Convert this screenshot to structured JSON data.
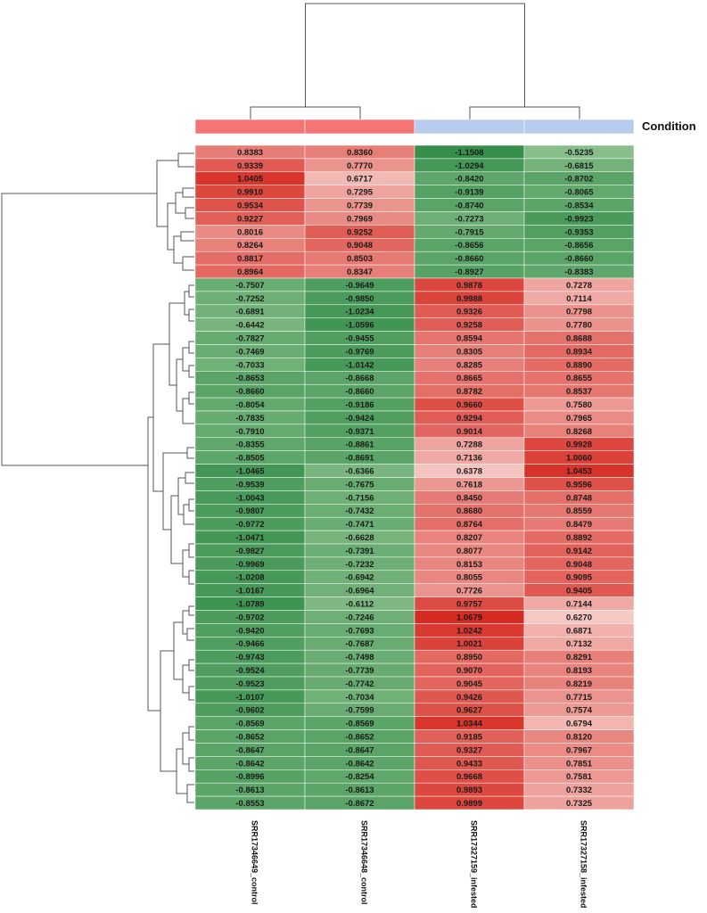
{
  "chart_data": {
    "type": "heatmap",
    "legend_title": "Condition",
    "condition_colors": {
      "control": "#f47575",
      "infested": "#b8ccee"
    },
    "color_scale": {
      "low": "#2e8b46",
      "mid": "#fbe3e0",
      "high": "#d42016"
    },
    "columns": [
      {
        "label": "SRR17346649_control",
        "condition": "control"
      },
      {
        "label": "SRR17346648_control",
        "condition": "control"
      },
      {
        "label": "SRR17327159_infested",
        "condition": "infested"
      },
      {
        "label": "SRR17327158_infested",
        "condition": "infested"
      }
    ],
    "rows": [
      [
        "0.8383",
        "0.8360",
        "-1.1508",
        "-0.5235"
      ],
      [
        "0.9339",
        "0.7770",
        "-1.0294",
        "-0.6815"
      ],
      [
        "1.0405",
        "0.6717",
        "-0.8420",
        "-0.8702"
      ],
      [
        "0.9910",
        "0.7295",
        "-0.9139",
        "-0.8065"
      ],
      [
        "0.9534",
        "0.7739",
        "-0.8740",
        "-0.8534"
      ],
      [
        "0.9227",
        "0.7969",
        "-0.7273",
        "-0.9923"
      ],
      [
        "0.8016",
        "0.9252",
        "-0.7915",
        "-0.9353"
      ],
      [
        "0.8264",
        "0.9048",
        "-0.8656",
        "-0.8656"
      ],
      [
        "0.8817",
        "0.8503",
        "-0.8660",
        "-0.8660"
      ],
      [
        "0.8964",
        "0.8347",
        "-0.8927",
        "-0.8383"
      ],
      [
        "-0.7507",
        "-0.9649",
        "0.9878",
        "0.7278"
      ],
      [
        "-0.7252",
        "-0.9850",
        "0.9988",
        "0.7114"
      ],
      [
        "-0.6891",
        "-1.0234",
        "0.9326",
        "0.7798"
      ],
      [
        "-0.6442",
        "-1.0596",
        "0.9258",
        "0.7780"
      ],
      [
        "-0.7827",
        "-0.9455",
        "0.8594",
        "0.8688"
      ],
      [
        "-0.7469",
        "-0.9769",
        "0.8305",
        "0.8934"
      ],
      [
        "-0.7033",
        "-1.0142",
        "0.8285",
        "0.8890"
      ],
      [
        "-0.8653",
        "-0.8668",
        "0.8665",
        "0.8655"
      ],
      [
        "-0.8660",
        "-0.8660",
        "0.8782",
        "0.8537"
      ],
      [
        "-0.8054",
        "-0.9186",
        "0.9660",
        "0.7580"
      ],
      [
        "-0.7835",
        "-0.9424",
        "0.9294",
        "0.7965"
      ],
      [
        "-0.7910",
        "-0.9371",
        "0.9014",
        "0.8268"
      ],
      [
        "-0.8355",
        "-0.8861",
        "0.7288",
        "0.9928"
      ],
      [
        "-0.8505",
        "-0.8691",
        "0.7136",
        "1.0060"
      ],
      [
        "-1.0465",
        "-0.6366",
        "0.6378",
        "1.0453"
      ],
      [
        "-0.9539",
        "-0.7675",
        "0.7618",
        "0.9596"
      ],
      [
        "-1.0043",
        "-0.7156",
        "0.8450",
        "0.8748"
      ],
      [
        "-0.9807",
        "-0.7432",
        "0.8680",
        "0.8559"
      ],
      [
        "-0.9772",
        "-0.7471",
        "0.8764",
        "0.8479"
      ],
      [
        "-1.0471",
        "-0.6628",
        "0.8207",
        "0.8892"
      ],
      [
        "-0.9827",
        "-0.7391",
        "0.8077",
        "0.9142"
      ],
      [
        "-0.9969",
        "-0.7232",
        "0.8153",
        "0.9048"
      ],
      [
        "-1.0208",
        "-0.6942",
        "0.8055",
        "0.9095"
      ],
      [
        "-1.0167",
        "-0.6964",
        "0.7726",
        "0.9405"
      ],
      [
        "-1.0789",
        "-0.6112",
        "0.9757",
        "0.7144"
      ],
      [
        "-0.9702",
        "-0.7246",
        "1.0679",
        "0.6270"
      ],
      [
        "-0.9420",
        "-0.7693",
        "1.0242",
        "0.6871"
      ],
      [
        "-0.9466",
        "-0.7687",
        "1.0021",
        "0.7132"
      ],
      [
        "-0.9743",
        "-0.7498",
        "0.8950",
        "0.8291"
      ],
      [
        "-0.9524",
        "-0.7739",
        "0.9070",
        "0.8193"
      ],
      [
        "-0.9523",
        "-0.7742",
        "0.9045",
        "0.8219"
      ],
      [
        "-1.0107",
        "-0.7034",
        "0.9426",
        "0.7715"
      ],
      [
        "-0.9602",
        "-0.7599",
        "0.9627",
        "0.7574"
      ],
      [
        "-0.8569",
        "-0.8569",
        "1.0344",
        "0.6794"
      ],
      [
        "-0.8652",
        "-0.8652",
        "0.9185",
        "0.8120"
      ],
      [
        "-0.8647",
        "-0.8647",
        "0.9327",
        "0.7967"
      ],
      [
        "-0.8642",
        "-0.8642",
        "0.9433",
        "0.7851"
      ],
      [
        "-0.8996",
        "-0.8254",
        "0.9668",
        "0.7581"
      ],
      [
        "-0.8613",
        "-0.8613",
        "0.9893",
        "0.7332"
      ],
      [
        "-0.8553",
        "-0.8672",
        "0.9899",
        "0.7325"
      ]
    ]
  }
}
